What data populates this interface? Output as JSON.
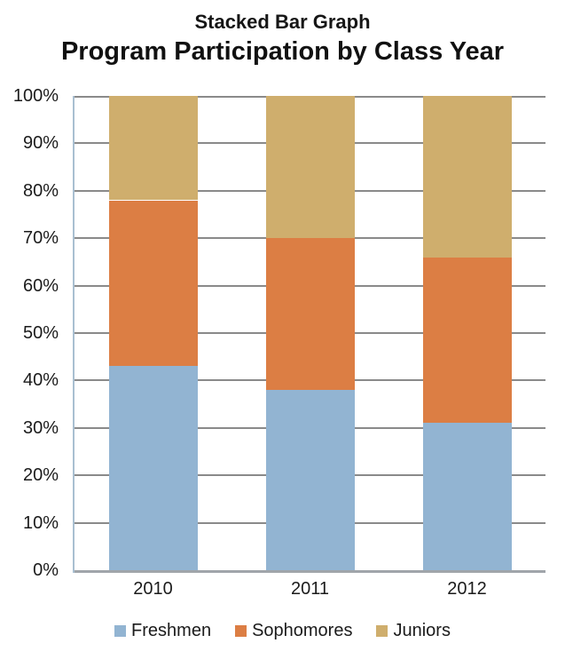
{
  "chart_data": {
    "type": "bar",
    "stacked": true,
    "title": "Stacked Bar Graph",
    "subtitle": "Program Participation by Class Year",
    "categories": [
      "2010",
      "2011",
      "2012"
    ],
    "series": [
      {
        "name": "Freshmen",
        "color": "#92B4D2",
        "values": [
          43,
          38,
          31
        ]
      },
      {
        "name": "Sophomores",
        "color": "#DC7E44",
        "values": [
          35,
          32,
          35
        ]
      },
      {
        "name": "Juniors",
        "color": "#CFAE6D",
        "values": [
          22,
          30,
          34
        ]
      }
    ],
    "ylim": [
      0,
      100
    ],
    "yticks": [
      {
        "value": 0,
        "label": "0%"
      },
      {
        "value": 10,
        "label": "10%"
      },
      {
        "value": 20,
        "label": "20%"
      },
      {
        "value": 30,
        "label": "30%"
      },
      {
        "value": 40,
        "label": "40%"
      },
      {
        "value": 50,
        "label": "50%"
      },
      {
        "value": 60,
        "label": "60%"
      },
      {
        "value": 70,
        "label": "70%"
      },
      {
        "value": 80,
        "label": "80%"
      },
      {
        "value": 90,
        "label": "90%"
      },
      {
        "value": 100,
        "label": "100%"
      }
    ],
    "grid": true,
    "legend_position": "bottom"
  },
  "colors": {
    "background": "#FFFFFF",
    "gridline": "#8A8A8A",
    "x_axis": "#A0A5AA",
    "y_axis": "#A9BFD1",
    "text": "#1B1B1B"
  }
}
